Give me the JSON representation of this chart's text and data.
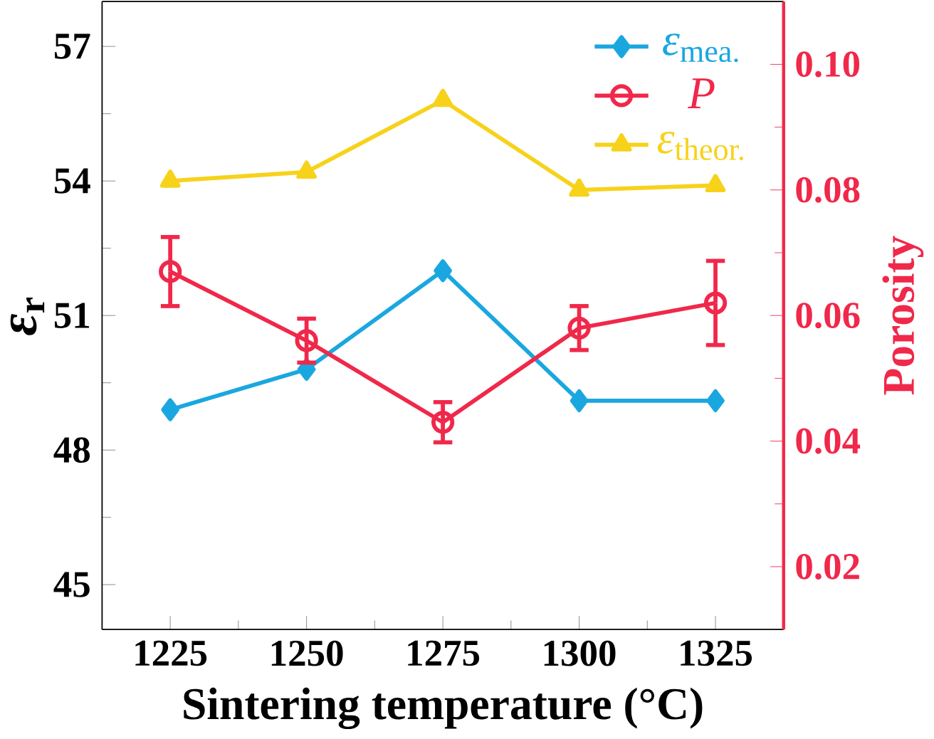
{
  "chart_data": {
    "type": "line",
    "xlabel": "Sintering temperature (°C)",
    "ylabel": "*ε*$_{r}$",
    "y2label": "Porosity",
    "x": [
      1225,
      1250,
      1275,
      1300,
      1325
    ],
    "xlim": [
      1212.5,
      1337.5
    ],
    "xticks": [
      1225,
      1250,
      1275,
      1300,
      1325
    ],
    "ylim": [
      44,
      58
    ],
    "yticks": [
      45,
      48,
      51,
      54,
      57
    ],
    "y2lim": [
      0.01,
      0.11
    ],
    "y2ticks": [
      0.02,
      0.04,
      0.06,
      0.08,
      {
        "value": 0.1,
        "label": "0.10"
      }
    ],
    "legend": "top right",
    "grid": false,
    "series": [
      {
        "name": "*ε*$_{mea.}$",
        "color": "#1aa7e0",
        "marker": "diamond",
        "values": [
          48.9,
          49.8,
          52.0,
          49.1,
          49.1
        ]
      },
      {
        "name": "*P*",
        "color": "#f0284a",
        "marker": "circle",
        "axis": "y2",
        "values": [
          0.067,
          0.056,
          0.043,
          0.058,
          0.062
        ],
        "errors": [
          0.0055,
          0.0035,
          0.0032,
          0.0035,
          0.0067
        ]
      },
      {
        "name": "*ε*$_{theor.}$",
        "color": "#f7d21a",
        "marker": "triangle",
        "values": [
          54.0,
          54.2,
          55.8,
          53.8,
          53.9
        ]
      }
    ]
  }
}
